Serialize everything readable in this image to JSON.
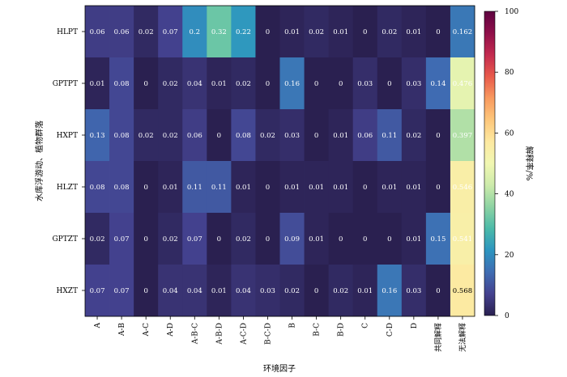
{
  "chart_data": {
    "type": "heatmap",
    "title": "",
    "xlabel": "环境因子",
    "ylabel": "水库浮游动、植物群落",
    "x_categories": [
      "A",
      "A-B",
      "A-C",
      "A-D",
      "A-B-C",
      "A-B-D",
      "A-C-D",
      "B-C-D",
      "B",
      "B-C",
      "B-D",
      "C",
      "C-D",
      "D",
      "共同解释",
      "无法解释"
    ],
    "y_categories": [
      "HLPT",
      "GPTPT",
      "HXPT",
      "HLZT",
      "GPTZT",
      "HXZT"
    ],
    "values": [
      [
        0.06,
        0.06,
        0.02,
        0.07,
        0.2,
        0.32,
        0.22,
        0,
        0.01,
        0.02,
        0.01,
        0,
        0.02,
        0.01,
        0,
        0.162
      ],
      [
        0.01,
        0.08,
        0,
        0.02,
        0.04,
        0.01,
        0.02,
        0,
        0.16,
        0,
        0,
        0.03,
        0,
        0.03,
        0.14,
        0.476
      ],
      [
        0.13,
        0.08,
        0.02,
        0.02,
        0.06,
        0,
        0.08,
        0.02,
        0.03,
        0,
        0.01,
        0.06,
        0.11,
        0.02,
        0,
        0.397
      ],
      [
        0.08,
        0.08,
        0,
        0.01,
        0.11,
        0.11,
        0.01,
        0,
        0.01,
        0.01,
        0.01,
        0,
        0.01,
        0.01,
        0,
        0.546
      ],
      [
        0.02,
        0.07,
        0,
        0.02,
        0.07,
        0,
        0.02,
        0,
        0.09,
        0.01,
        0,
        0,
        0,
        0.01,
        0.15,
        0.541
      ],
      [
        0.07,
        0.07,
        0,
        0.04,
        0.04,
        0.01,
        0.04,
        0.03,
        0.02,
        0,
        0.02,
        0.01,
        0.16,
        0.03,
        0,
        0.568
      ]
    ],
    "colorbar": {
      "label": "解释率/%",
      "range": [
        0,
        100
      ],
      "ticks": [
        0,
        20,
        40,
        60,
        80,
        100
      ]
    },
    "colormap": [
      "#2a2050",
      "#44428f",
      "#3f6db3",
      "#2d95c0",
      "#4bbaa9",
      "#8dd3a3",
      "#cdebab",
      "#f1f7b2",
      "#fde9a1",
      "#fdc77b",
      "#f89a5f",
      "#e85a4b",
      "#c32a4f",
      "#8f0f49",
      "#5e0341"
    ],
    "grid": false
  }
}
